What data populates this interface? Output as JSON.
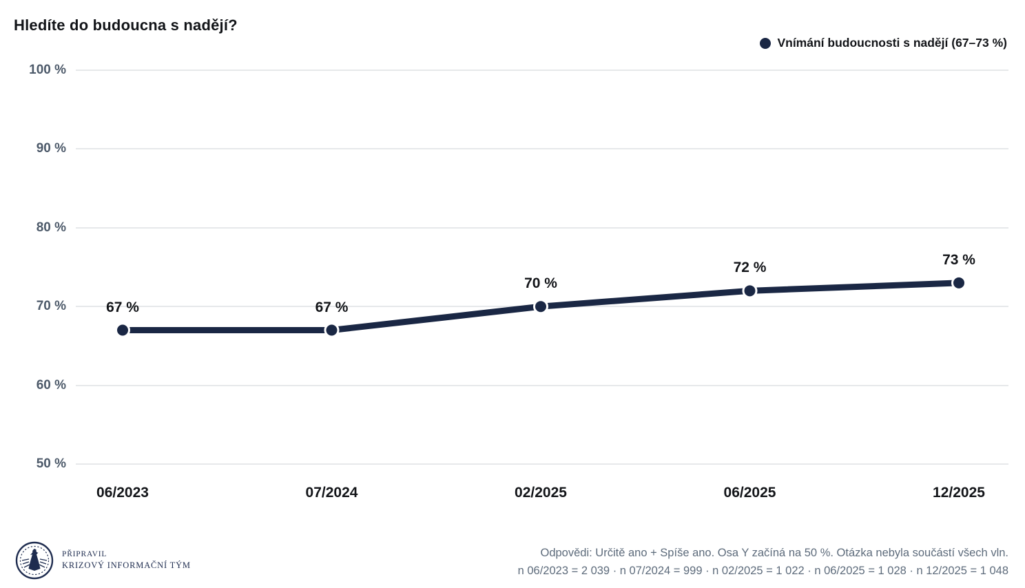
{
  "title": "Hledíte do budoucna s nadějí?",
  "legend": {
    "label": "Vnímání budoucnosti s nadějí (67–73 %)",
    "color": "#1a2744"
  },
  "chart_data": {
    "type": "line",
    "categories": [
      "06/2023",
      "07/2024",
      "02/2025",
      "06/2025",
      "12/2025"
    ],
    "values": [
      67,
      67,
      70,
      72,
      73
    ],
    "point_labels": [
      "67 %",
      "67 %",
      "70 %",
      "72 %",
      "73 %"
    ],
    "series_name": "Vnímání budoucnosti s nadějí (67–73 %)",
    "title": "Hledíte do budoucna s nadějí?",
    "xlabel": "",
    "ylabel": "",
    "ylim": [
      50,
      100
    ],
    "yticks": [
      100,
      90,
      80,
      70,
      60,
      50
    ],
    "ytick_labels": [
      "100 %",
      "90 %",
      "80 %",
      "70 %",
      "60 %",
      "50 %"
    ],
    "grid": true,
    "legend_position": "top-right",
    "line_color": "#1a2744",
    "marker_color": "#1a2744",
    "gridline_color": "#e6e8ea"
  },
  "footer": {
    "note_line1": "Odpovědi: Určitě ano + Spíše ano. Osa Y začíná na 50 %. Otázka nebyla součástí všech vln.",
    "note_line2": "n 06/2023 = 2 039 · n 07/2024 = 999 · n 02/2025 = 1 022 · n 06/2025 = 1 028 · n 12/2025 = 1 048"
  },
  "branding": {
    "prepared_by_label": "PŘIPRAVIL",
    "team_name": "KRIZOVÝ INFORMAČNÍ TÝM",
    "logo_color": "#1e2c4f"
  }
}
